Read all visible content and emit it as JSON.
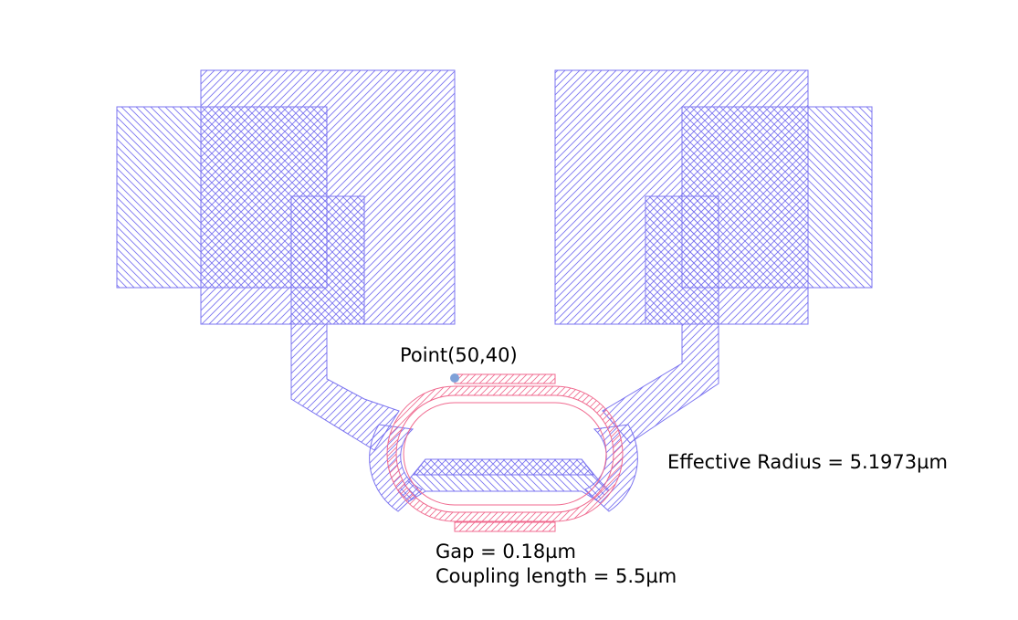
{
  "colors": {
    "metal": "#7b74f0",
    "ring": "#f06a8f",
    "point": "#7ea1d8",
    "background": "#ffffff"
  },
  "annotations": {
    "point_label": "Point(50,40)",
    "effective_radius": "Effective Radius = 5.1973µm",
    "gap": "Gap = 0.18µm",
    "coupling_length": "Coupling length = 5.5µm"
  }
}
